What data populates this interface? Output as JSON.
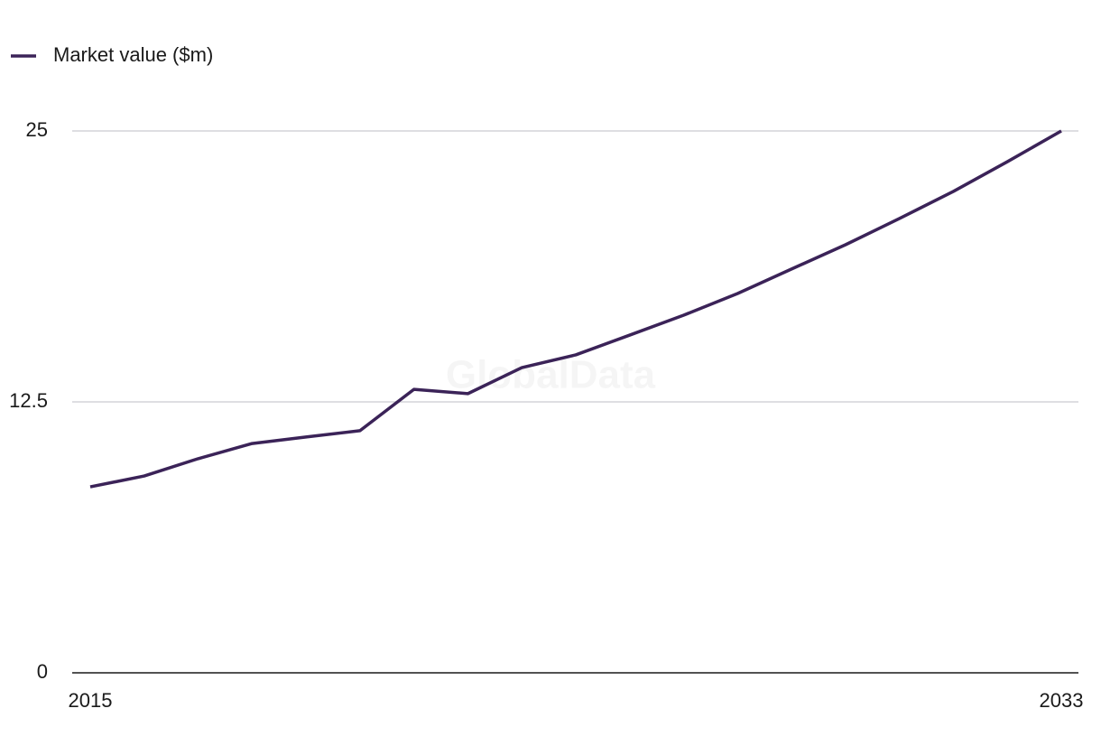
{
  "chart_data": {
    "type": "line",
    "watermark": "GlobalData",
    "x": [
      2015,
      2016,
      2017,
      2018,
      2019,
      2020,
      2021,
      2022,
      2023,
      2024,
      2025,
      2026,
      2027,
      2028,
      2029,
      2030,
      2031,
      2032,
      2033
    ],
    "series": [
      {
        "name": "Market value ($m)",
        "color": "#3b2358",
        "values": [
          8.58,
          9.08,
          9.88,
          10.58,
          10.88,
          11.17,
          13.08,
          12.88,
          14.08,
          14.67,
          15.58,
          16.5,
          17.5,
          18.63,
          19.75,
          20.96,
          22.21,
          23.58,
          25
        ]
      }
    ],
    "xlim": [
      2015,
      2033
    ],
    "xticks": [
      2015,
      2033
    ],
    "ylim": [
      0,
      25
    ],
    "yticks": [
      0,
      12.5,
      25
    ],
    "grid": true,
    "legend": "top-left"
  }
}
